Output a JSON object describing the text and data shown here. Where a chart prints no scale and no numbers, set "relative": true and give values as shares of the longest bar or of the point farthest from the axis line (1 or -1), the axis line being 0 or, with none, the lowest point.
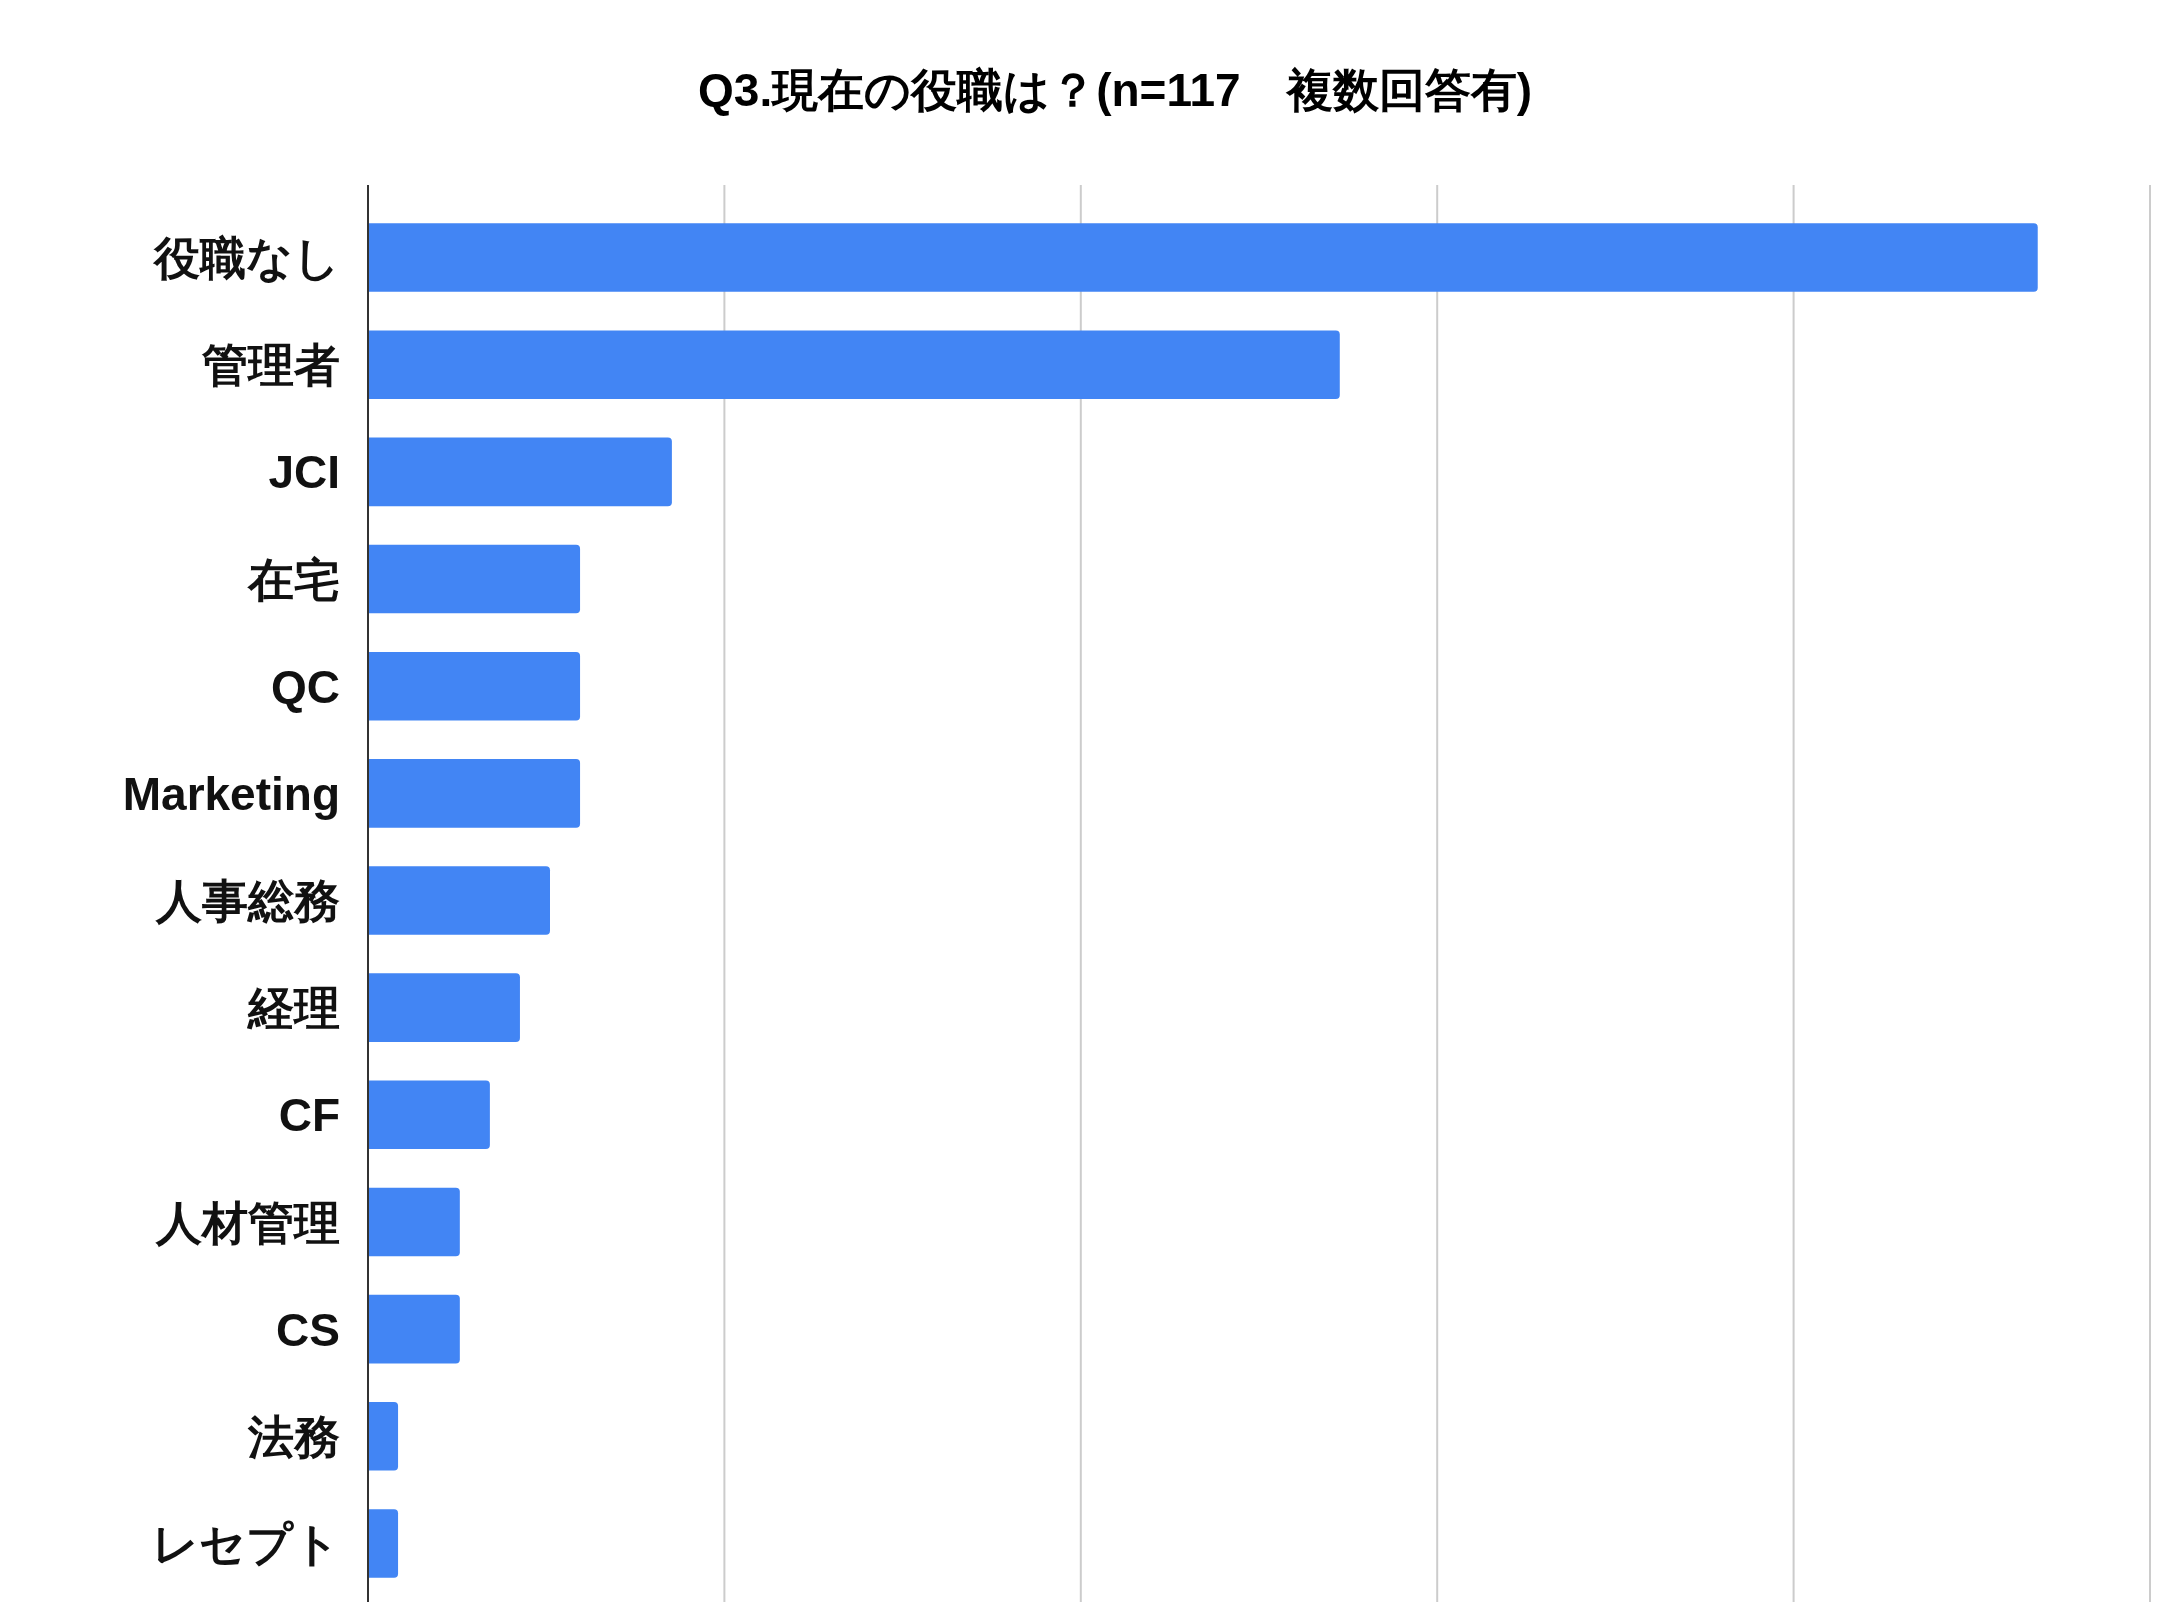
{
  "chart_data": {
    "type": "bar",
    "orientation": "horizontal",
    "relative": true,
    "title": "Q3.現在の役職は？(n=117　複数回答有)",
    "categories": [
      "役職なし",
      "管理者",
      "JCI",
      "在宅",
      "QC",
      "Marketing",
      "人事総務",
      "経理",
      "CF",
      "人材管理",
      "CS",
      "法務",
      "レセプト"
    ],
    "values": [
      1,
      0.582,
      0.182,
      0.127,
      0.127,
      0.127,
      0.109,
      0.091,
      0.073,
      0.055,
      0.055,
      0.018,
      0.018
    ],
    "color": "#4285f4",
    "grid": "x"
  }
}
